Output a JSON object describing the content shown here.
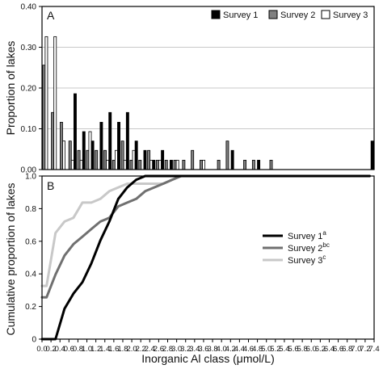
{
  "chart_data": [
    {
      "panel_label": "A",
      "type": "bar",
      "ylabel": "Proportion of lakes",
      "ylim": [
        0,
        0.4
      ],
      "yticks": [
        "0.00",
        "0.10",
        "0.20",
        "0.30",
        "0.40"
      ],
      "grid": true,
      "legend_position": "top-right",
      "n_bins": 38,
      "series": [
        {
          "name": "Survey 1",
          "color": "#000000",
          "values": [
            0,
            0,
            0,
            0.186,
            0.093,
            0.07,
            0.116,
            0.14,
            0.116,
            0.14,
            0.07,
            0.047,
            0.023,
            0.047,
            0.023,
            0,
            0,
            0,
            0,
            0,
            0,
            0.047,
            0,
            0,
            0.023,
            0,
            0,
            0,
            0,
            0,
            0,
            0,
            0,
            0,
            0,
            0,
            0,
            0.07
          ]
        },
        {
          "name": "Survey 2",
          "color": "#808080",
          "values": [
            0.256,
            0.14,
            0.116,
            0.07,
            0.047,
            0.047,
            0.047,
            0.047,
            0.023,
            0.07,
            0.023,
            0.023,
            0.047,
            0.023,
            0.023,
            0.023,
            0.023,
            0.047,
            0.023,
            0,
            0.023,
            0.07,
            0,
            0.023,
            0.023,
            0,
            0.023,
            0,
            0,
            0,
            0,
            0,
            0,
            0,
            0,
            0,
            0,
            0
          ]
        },
        {
          "name": "Survey 3",
          "color": "#ffffff",
          "values": [
            0.326,
            0.326,
            0.07,
            0.023,
            0.023,
            0.093,
            0,
            0.023,
            0.047,
            0.023,
            0.047,
            0,
            0.023,
            0.023,
            0,
            0.023,
            0,
            0,
            0.023,
            0,
            0,
            0,
            0,
            0,
            0,
            0,
            0,
            0,
            0,
            0,
            0,
            0,
            0,
            0,
            0,
            0,
            0,
            0
          ]
        }
      ]
    },
    {
      "panel_label": "B",
      "type": "line",
      "ylabel": "Cumulative proportion of lakes",
      "xlabel": "Inorganic Al class (μmol/L)",
      "ylim": [
        0,
        1.0
      ],
      "xlim": [
        0,
        7.4
      ],
      "yticks": [
        "0",
        "0.2",
        "0.4",
        "0.6",
        "0.8",
        "1.0"
      ],
      "x_tick_labels": [
        "0.0",
        "0.2",
        "0.4",
        "0.6",
        "0.8",
        "1.0",
        "1.2",
        "1.4",
        "1.6",
        "1.8",
        "2.0",
        "2.2",
        "2.4",
        "2.6",
        "2.8",
        "3.0",
        "3.2",
        "3.4",
        "3.6",
        "3.8",
        "4.0",
        "4.2",
        "4.4",
        "4.6",
        "4.8",
        "5.0",
        "5.2",
        "5.4",
        "5.6",
        "5.8",
        "6.0",
        "6.2",
        "6.4",
        "6.6",
        "6.8",
        "7.0",
        "7.2",
        "7.4"
      ],
      "x_tick_values": [
        0.0,
        0.2,
        0.4,
        0.6,
        0.8,
        1.0,
        1.2,
        1.4,
        1.6,
        1.8,
        2.0,
        2.2,
        2.4,
        2.6,
        2.8,
        3.0,
        3.2,
        3.4,
        3.6,
        3.8,
        4.0,
        4.2,
        4.4,
        4.6,
        4.8,
        5.0,
        5.2,
        5.4,
        5.6,
        5.8,
        6.0,
        6.2,
        6.4,
        6.6,
        6.8,
        7.0,
        7.2,
        7.4
      ],
      "legend_position": "center-right",
      "series": [
        {
          "name": "Survey 1",
          "superscript": "a",
          "color": "#000000",
          "x": [
            0.0,
            0.1,
            0.3,
            0.5,
            0.7,
            0.9,
            1.1,
            1.3,
            1.5,
            1.7,
            1.9,
            2.1,
            2.3,
            2.5,
            2.7,
            2.9,
            3.1,
            3.3,
            3.5,
            3.7,
            3.9,
            4.1,
            4.3,
            4.5,
            4.7,
            4.9,
            5.1,
            5.3,
            5.5,
            5.7,
            5.9,
            6.1,
            6.3,
            6.5,
            6.7,
            6.9,
            7.1,
            7.3
          ],
          "y": [
            0.0,
            0.0,
            0.0,
            0.186,
            0.279,
            0.349,
            0.465,
            0.605,
            0.721,
            0.86,
            0.93,
            0.977,
            1.0,
            1.0,
            1.0,
            1.0,
            1.0,
            1.0,
            1.0,
            1.0,
            1.0,
            1.0,
            1.0,
            1.0,
            1.0,
            1.0,
            1.0,
            1.0,
            1.0,
            1.0,
            1.0,
            1.0,
            1.0,
            1.0,
            1.0,
            1.0,
            1.0,
            1.0
          ]
        },
        {
          "name": "Survey 2",
          "superscript": "bc",
          "color": "#707070",
          "x": [
            0.0,
            0.1,
            0.3,
            0.5,
            0.7,
            0.9,
            1.1,
            1.3,
            1.5,
            1.7,
            1.9,
            2.1,
            2.3,
            2.5,
            2.7,
            2.9,
            3.1,
            3.3,
            3.5,
            3.7,
            3.9,
            4.1,
            4.3,
            4.5,
            4.7,
            4.9,
            5.1,
            5.3,
            5.5,
            5.7,
            5.9,
            6.1,
            6.3,
            6.5,
            6.7,
            6.9,
            7.1,
            7.3
          ],
          "y": [
            0.256,
            0.256,
            0.396,
            0.512,
            0.582,
            0.628,
            0.675,
            0.721,
            0.744,
            0.814,
            0.837,
            0.86,
            0.907,
            0.93,
            0.953,
            0.977,
            1.0,
            1.0,
            1.0,
            1.0,
            1.0,
            1.0,
            1.0,
            1.0,
            1.0,
            1.0,
            1.0,
            1.0,
            1.0,
            1.0,
            1.0,
            1.0,
            1.0,
            1.0,
            1.0,
            1.0,
            1.0,
            1.0
          ]
        },
        {
          "name": "Survey 3",
          "superscript": "c",
          "color": "#c8c8c8",
          "x": [
            0.0,
            0.1,
            0.3,
            0.5,
            0.7,
            0.9,
            1.1,
            1.3,
            1.5,
            1.7,
            1.9,
            2.1,
            2.3,
            2.5,
            2.7,
            2.9,
            3.1,
            3.3,
            3.5,
            3.7,
            3.9,
            4.1,
            4.3
          ],
          "y": [
            0.326,
            0.326,
            0.651,
            0.721,
            0.744,
            0.837,
            0.837,
            0.86,
            0.907,
            0.93,
            0.953,
            0.953,
            0.953,
            0.953,
            0.953,
            0.977,
            1.0,
            1.0,
            1.0,
            1.0,
            1.0,
            1.0,
            1.0
          ]
        }
      ]
    }
  ]
}
